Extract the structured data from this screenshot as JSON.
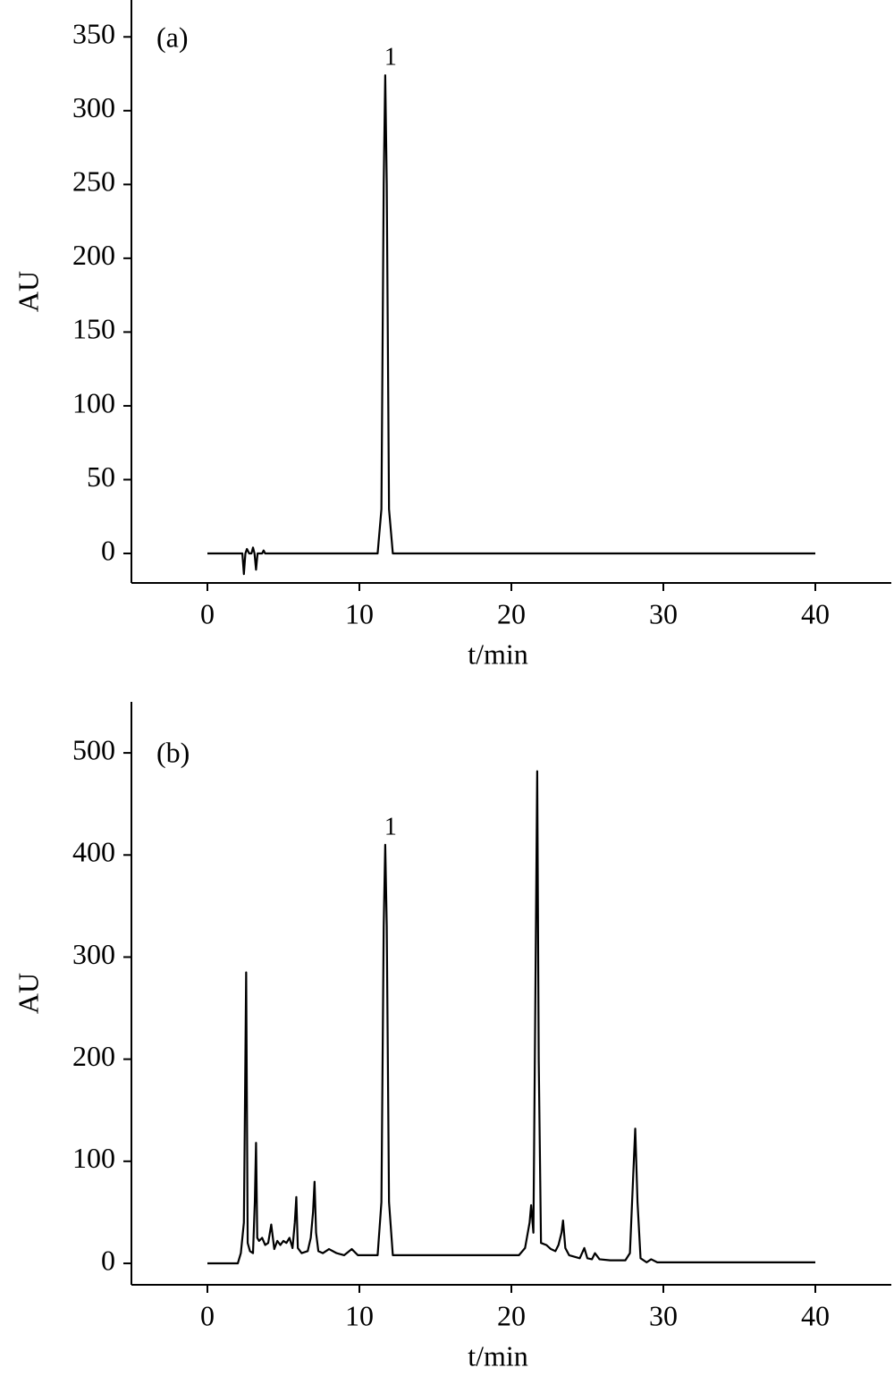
{
  "chart_data": [
    {
      "type": "line",
      "panel_label": "(a)",
      "y_label": "AU",
      "x_label": "t/min",
      "xlim": [
        -5,
        45
      ],
      "xticks": [
        0,
        10,
        20,
        30,
        40
      ],
      "ylim": [
        -20,
        375
      ],
      "yticks": [
        0,
        50,
        100,
        150,
        200,
        250,
        300,
        350
      ],
      "x": [
        0,
        2.3,
        2.4,
        2.5,
        2.6,
        2.75,
        2.9,
        3.0,
        3.1,
        3.2,
        3.3,
        3.6,
        3.7,
        3.8,
        11.2,
        11.45,
        11.6,
        11.7,
        11.8,
        11.95,
        12.2,
        40
      ],
      "series": [
        {
          "color": "#000000",
          "values": [
            0,
            0,
            -14,
            0,
            3,
            0,
            0,
            4,
            0,
            -11,
            0,
            0,
            2,
            0,
            0,
            30,
            250,
            324,
            250,
            30,
            0,
            0
          ]
        }
      ],
      "annotations": [
        {
          "text": "1",
          "x": 11.7,
          "y": 324
        }
      ]
    },
    {
      "type": "line",
      "panel_label": "(b)",
      "y_label": "AU",
      "x_label": "t/min",
      "xlim": [
        -5,
        45
      ],
      "xticks": [
        0,
        10,
        20,
        30,
        40
      ],
      "ylim": [
        -21,
        550
      ],
      "yticks": [
        0,
        100,
        200,
        300,
        400,
        500
      ],
      "x": [
        0,
        2.0,
        2.2,
        2.4,
        2.45,
        2.55,
        2.65,
        2.8,
        3.0,
        3.12,
        3.2,
        3.28,
        3.4,
        3.6,
        3.8,
        4.0,
        4.2,
        4.4,
        4.6,
        4.8,
        5.0,
        5.2,
        5.4,
        5.6,
        5.75,
        5.85,
        5.95,
        6.2,
        6.6,
        6.8,
        6.95,
        7.05,
        7.15,
        7.3,
        7.6,
        8.0,
        8.5,
        9.0,
        9.5,
        9.9,
        11.2,
        11.45,
        11.6,
        11.7,
        11.8,
        11.95,
        12.2,
        20.5,
        20.9,
        21.2,
        21.3,
        21.45,
        21.6,
        21.7,
        21.8,
        21.95,
        22.3,
        22.6,
        22.9,
        23.1,
        23.3,
        23.4,
        23.55,
        23.8,
        24.5,
        24.8,
        25.0,
        25.3,
        25.5,
        25.8,
        26.5,
        27.5,
        27.8,
        28.0,
        28.15,
        28.3,
        28.5,
        28.9,
        29.2,
        29.6,
        40
      ],
      "series": [
        {
          "color": "#000000",
          "values": [
            0,
            0,
            10,
            40,
            120,
            285,
            20,
            12,
            10,
            60,
            118,
            25,
            22,
            25,
            18,
            20,
            38,
            14,
            22,
            18,
            22,
            20,
            25,
            15,
            40,
            65,
            15,
            10,
            12,
            25,
            50,
            80,
            30,
            12,
            10,
            14,
            10,
            8,
            14,
            8,
            8,
            60,
            330,
            410,
            330,
            60,
            8,
            8,
            15,
            40,
            57,
            30,
            300,
            482,
            200,
            20,
            18,
            14,
            12,
            18,
            30,
            42,
            15,
            8,
            5,
            15,
            5,
            4,
            10,
            4,
            3,
            3,
            10,
            80,
            132,
            60,
            5,
            1,
            4,
            1,
            1
          ]
        }
      ],
      "annotations": [
        {
          "text": "1",
          "x": 11.7,
          "y": 410
        }
      ]
    }
  ]
}
